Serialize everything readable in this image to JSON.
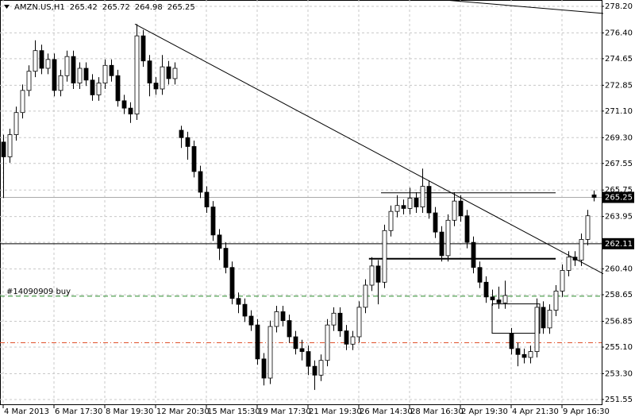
{
  "chart_data": {
    "type": "candlestick",
    "symbol": "AMZN.US,H1",
    "header_ohlc": [
      265.42,
      265.72,
      264.98,
      265.25
    ],
    "categories": [
      "4 Mar 2013",
      null,
      null,
      null,
      null,
      null,
      null,
      null,
      "6 Mar 17:30",
      null,
      null,
      null,
      null,
      null,
      null,
      null,
      "8 Mar 19:30",
      null,
      null,
      null,
      null,
      null,
      null,
      null,
      "12 Mar 20:30",
      null,
      null,
      null,
      null,
      null,
      null,
      null,
      "15 Mar 15:30",
      null,
      null,
      null,
      null,
      null,
      null,
      null,
      "19 Mar 17:30",
      null,
      null,
      null,
      null,
      null,
      null,
      null,
      "21 Mar 19:30",
      null,
      null,
      null,
      null,
      null,
      null,
      null,
      "26 Mar 14:30",
      null,
      null,
      null,
      null,
      null,
      null,
      null,
      "28 Mar 16:30",
      null,
      null,
      null,
      null,
      null,
      null,
      null,
      "2 Apr 19:30",
      null,
      null,
      null,
      null,
      null,
      null,
      null,
      "4 Apr 21:30",
      null,
      null,
      null,
      null,
      null,
      null,
      null,
      "9 Apr 16:30",
      null,
      null,
      null,
      null,
      null
    ],
    "open": [
      269.0,
      268.0,
      269.5,
      271.0,
      272.5,
      273.8,
      275.2,
      274.0,
      274.6,
      272.5,
      273.5,
      274.8,
      273.0,
      274.0,
      273.2,
      272.2,
      273.0,
      274.2,
      273.5,
      271.8,
      271.3,
      270.9,
      276.2,
      274.5,
      273.0,
      272.6,
      274.1,
      273.3,
      269.8,
      269.3,
      268.7,
      267.0,
      265.6,
      264.6,
      262.7,
      261.8,
      260.5,
      258.4,
      258.0,
      257.2,
      256.6,
      254.3,
      253.0,
      256.5,
      257.5,
      256.9,
      255.8,
      255.0,
      254.8,
      253.8,
      253.2,
      254.2,
      256.6,
      257.4,
      256.2,
      255.3,
      255.8,
      257.8,
      259.3,
      260.6,
      259.5,
      263.0,
      264.3,
      264.7,
      264.5,
      265.2,
      264.6,
      266.0,
      264.2,
      262.9,
      261.3,
      263.7,
      265.0,
      264.0,
      262.2,
      260.5,
      259.5,
      258.5,
      258.3,
      258.1,
      256.0,
      255.0,
      254.6,
      254.4,
      254.8,
      257.8,
      256.4,
      257.6,
      258.9,
      260.3,
      261.2,
      261.0,
      262.4,
      265.42
    ],
    "high": [
      269.5,
      269.9,
      271.4,
      272.9,
      274.2,
      275.9,
      275.6,
      275.0,
      275.0,
      273.9,
      275.2,
      275.2,
      274.4,
      274.4,
      273.6,
      273.4,
      274.6,
      274.6,
      273.9,
      272.2,
      271.7,
      277.0,
      276.6,
      274.9,
      273.4,
      274.9,
      274.5,
      274.4,
      270.1,
      269.7,
      269.1,
      267.4,
      266.0,
      265.0,
      263.1,
      262.2,
      260.9,
      258.8,
      258.4,
      257.6,
      257.0,
      254.7,
      256.9,
      257.9,
      257.9,
      257.3,
      256.2,
      255.6,
      255.2,
      254.2,
      254.6,
      257.0,
      257.8,
      257.8,
      256.6,
      256.2,
      258.2,
      259.7,
      261.2,
      261.0,
      263.4,
      264.7,
      265.4,
      265.1,
      265.9,
      265.6,
      267.2,
      266.4,
      264.6,
      263.3,
      264.1,
      265.6,
      265.4,
      264.4,
      262.6,
      260.9,
      259.9,
      259.0,
      259.2,
      259.6,
      256.4,
      255.4,
      255.0,
      255.2,
      258.4,
      258.2,
      258.0,
      259.3,
      260.7,
      261.6,
      261.6,
      262.8,
      264.4,
      265.72
    ],
    "low": [
      265.2,
      267.6,
      269.1,
      270.6,
      272.1,
      273.4,
      273.6,
      273.6,
      272.1,
      272.1,
      273.1,
      272.6,
      272.6,
      272.8,
      271.8,
      271.8,
      272.6,
      273.1,
      271.4,
      270.9,
      270.3,
      270.5,
      274.1,
      272.1,
      272.2,
      272.2,
      272.9,
      272.9,
      268.6,
      267.8,
      266.6,
      265.2,
      264.2,
      262.3,
      261.0,
      260.1,
      258.0,
      257.4,
      256.8,
      256.2,
      253.9,
      252.5,
      252.6,
      256.1,
      256.5,
      255.4,
      254.6,
      254.2,
      253.2,
      252.2,
      252.8,
      253.8,
      256.2,
      255.8,
      254.9,
      254.9,
      255.4,
      257.4,
      258.9,
      258.0,
      259.1,
      262.6,
      263.9,
      264.1,
      264.1,
      264.2,
      264.2,
      263.8,
      262.5,
      260.9,
      260.9,
      263.3,
      263.6,
      261.8,
      260.1,
      259.1,
      258.1,
      257.9,
      257.7,
      257.7,
      254.6,
      253.8,
      254.0,
      254.0,
      254.4,
      256.0,
      256.0,
      257.2,
      258.5,
      259.9,
      260.6,
      260.6,
      262.0,
      264.98
    ],
    "close": [
      268.0,
      269.5,
      271.0,
      272.5,
      273.8,
      275.2,
      274.0,
      274.6,
      272.5,
      273.5,
      274.8,
      273.0,
      274.0,
      273.2,
      272.2,
      273.0,
      274.2,
      273.5,
      271.8,
      271.3,
      270.9,
      276.2,
      274.5,
      273.0,
      272.6,
      274.1,
      273.3,
      274.0,
      269.3,
      268.7,
      267.0,
      265.6,
      264.6,
      262.7,
      261.8,
      260.5,
      258.4,
      258.0,
      257.2,
      256.6,
      254.3,
      253.0,
      256.5,
      257.5,
      256.9,
      255.8,
      255.0,
      254.8,
      253.8,
      253.2,
      254.2,
      256.6,
      257.4,
      256.2,
      255.3,
      255.8,
      257.8,
      259.3,
      260.6,
      259.5,
      263.0,
      264.3,
      264.7,
      264.5,
      265.2,
      264.6,
      266.0,
      264.2,
      262.9,
      261.3,
      263.7,
      265.0,
      264.0,
      262.2,
      260.5,
      259.5,
      258.5,
      258.3,
      258.1,
      258.6,
      255.0,
      254.6,
      254.4,
      254.8,
      257.8,
      256.4,
      257.6,
      258.9,
      260.3,
      261.2,
      261.0,
      262.4,
      264.0,
      265.25
    ],
    "ylim": [
      251.17,
      278.63
    ],
    "yticks": [
      {
        "value": 278.2,
        "label": "278.20"
      },
      {
        "value": 276.4,
        "label": "276.40"
      },
      274.65,
      272.85,
      {
        "value": 271.1,
        "label": "271.10"
      },
      {
        "value": 269.3,
        "label": "269.30"
      },
      267.55,
      265.75,
      263.95,
      {
        "value": 262.2,
        "label": "262.20"
      },
      {
        "value": 260.4,
        "label": "260.40"
      },
      258.65,
      256.85,
      {
        "value": 255.1,
        "label": "255.10"
      },
      {
        "value": 253.3,
        "label": "253.30"
      },
      251.55
    ],
    "grid": true,
    "bid": 265.25,
    "level": 262.11,
    "order": {
      "label": "#14090909 buy",
      "price": 258.55
    },
    "stop": 255.4,
    "trendlines": [
      {
        "x": [
          20.75,
          94.5
        ],
        "y": [
          277.0,
          260.07
        ]
      },
      {
        "x": [
          69.5,
          94.5
        ],
        "y": [
          278.63,
          277.72
        ]
      }
    ],
    "hlines": [
      {
        "x": [
          59.5,
          87
        ],
        "y": 265.56
      },
      {
        "x": [
          57.6,
          87
        ],
        "y": 261.09
      }
    ],
    "box": {
      "x": [
        77,
        84.5
      ],
      "y": [
        258.03,
        256.04
      ]
    }
  }
}
